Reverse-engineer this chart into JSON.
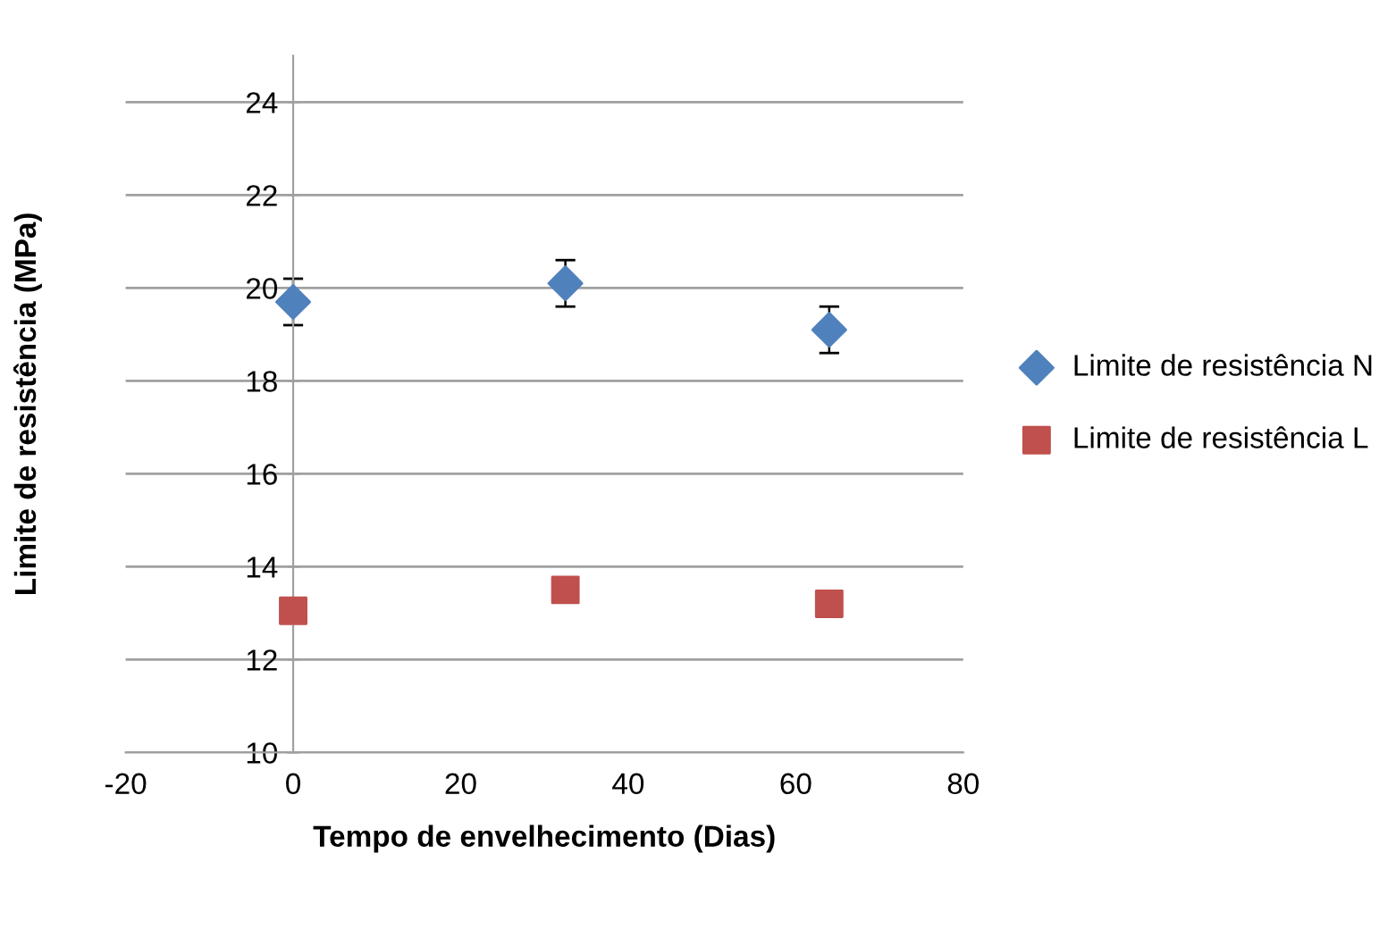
{
  "chart_data": {
    "type": "scatter",
    "xlabel": "Tempo de envelhecimento (Dias)",
    "ylabel": "Limite de resistência (MPa)",
    "xlim": [
      -20,
      80
    ],
    "xticks": [
      -20,
      0,
      20,
      40,
      60,
      80
    ],
    "ylim": [
      10,
      25
    ],
    "yticks": [
      10,
      12,
      14,
      16,
      18,
      20,
      22,
      24
    ],
    "grid": "y",
    "legend": "right",
    "series": [
      {
        "name": "Limite de resistência N",
        "color": "#4f81bd",
        "marker": "diamond",
        "x": [
          0,
          32.5,
          64
        ],
        "values": [
          19.7,
          20.1,
          19.1
        ],
        "errors": [
          0.5,
          0.5,
          0.5
        ]
      },
      {
        "name": "Limite de resistência L",
        "color": "#c0504d",
        "marker": "square",
        "x": [
          0,
          32.5,
          64
        ],
        "values": [
          13.05,
          13.5,
          13.2
        ]
      }
    ]
  }
}
